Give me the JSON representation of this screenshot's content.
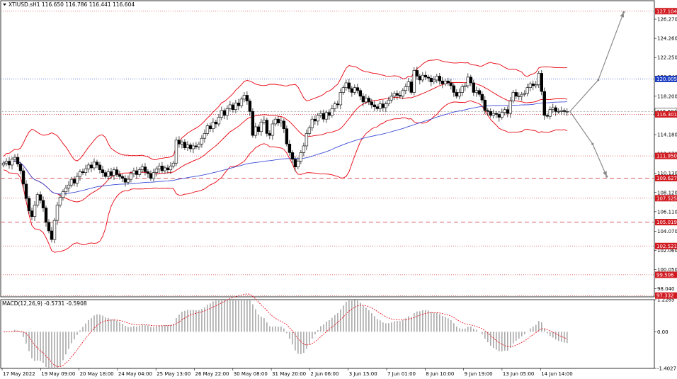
{
  "window": {
    "symbol_header": "XTIUSD.sH1  116.650 116.786 116.441 116.604",
    "indicator_header": "MACD(12,26,9) -0.5731 -0.5908"
  },
  "colors": {
    "bollinger": "#e8000c",
    "moving_average": "#3a4cd8",
    "candles": "#000000",
    "macd_histogram": "#a9a9a9",
    "macd_signal": "#e8000c",
    "level_line": "#d0464a",
    "price_label_bg": "#d11920",
    "blue_label_bg": "#1f3fc4",
    "forecast_arrow": "#8a8a8a"
  },
  "chart_data": [
    {
      "type": "candlestick",
      "title": "",
      "ylim": [
        97.2,
        128.2
      ],
      "y_ticks": [
        "126.270",
        "124.260",
        "122.250",
        "120.240",
        "118.200",
        "116.190",
        "114.180",
        "112.170",
        "110.130",
        "108.120",
        "106.110",
        "104.070",
        "102.060",
        "100.050",
        "98.040"
      ],
      "x_ticks": [
        "17 May 2022",
        "19 May 09:00",
        "20 May 18:00",
        "24 May 04:00",
        "25 May 13:00",
        "26 May 22:00",
        "30 May 08:00",
        "31 May 20:00",
        "2 Jun 06:00",
        "3 Jun 15:00",
        "7 Jun 01:00",
        "8 Jun 10:00",
        "9 Jun 19:00",
        "13 Jun 05:00",
        "14 Jun 14:00"
      ],
      "bar_count": 200,
      "close": [
        111.2,
        111.4,
        111.0,
        111.6,
        111.8,
        111.1,
        110.4,
        109.0,
        107.5,
        106.2,
        105.6,
        106.8,
        107.9,
        107.3,
        106.5,
        105.0,
        104.1,
        103.2,
        105.2,
        106.8,
        107.6,
        108.2,
        108.6,
        108.9,
        109.5,
        109.1,
        109.8,
        110.3,
        110.2,
        110.6,
        111.0,
        110.7,
        111.3,
        111.0,
        110.5,
        110.2,
        109.8,
        110.3,
        109.9,
        110.5,
        110.0,
        109.8,
        109.6,
        109.2,
        109.5,
        110.1,
        110.4,
        110.0,
        110.5,
        110.8,
        110.3,
        110.1,
        109.6,
        110.2,
        110.6,
        110.9,
        110.4,
        110.7,
        110.5,
        110.9,
        111.2,
        113.6,
        113.2,
        113.4,
        112.8,
        113.1,
        112.7,
        113.0,
        112.9,
        113.2,
        113.8,
        114.3,
        115.1,
        114.8,
        115.5,
        115.3,
        116.0,
        116.7,
        116.2,
        116.9,
        117.3,
        116.8,
        117.5,
        117.2,
        117.9,
        118.3,
        117.7,
        116.6,
        114.1,
        115.0,
        114.5,
        115.5,
        115.7,
        114.3,
        114.1,
        115.3,
        115.8,
        115.4,
        115.6,
        114.8,
        113.2,
        112.3,
        111.6,
        110.8,
        111.4,
        112.3,
        113.0,
        114.3,
        114.9,
        115.8,
        115.6,
        116.2,
        116.4,
        115.8,
        116.5,
        116.2,
        116.9,
        117.4,
        117.3,
        118.6,
        119.1,
        119.6,
        119.0,
        118.6,
        119.1,
        118.8,
        118.2,
        117.6,
        118.0,
        117.6,
        117.3,
        117.1,
        116.9,
        117.4,
        117.0,
        117.4,
        117.8,
        118.2,
        118.5,
        118.3,
        118.2,
        118.8,
        119.2,
        119.7,
        118.6,
        120.9,
        120.3,
        119.9,
        120.4,
        120.2,
        120.1,
        119.7,
        119.9,
        120.3,
        119.8,
        119.5,
        119.8,
        119.6,
        119.3,
        118.6,
        118.2,
        118.6,
        119.2,
        119.3,
        120.2,
        119.6,
        118.6,
        118.8,
        118.4,
        117.8,
        116.7,
        116.6,
        116.2,
        116.4,
        116.3,
        116.0,
        116.5,
        116.8,
        116.4,
        117.7,
        118.6,
        118.2,
        118.2,
        118.4,
        118.5,
        119.1,
        119.5,
        119.3,
        119.4,
        120.6,
        118.7,
        116.2,
        116.1,
        116.8,
        117.0,
        116.6,
        116.6,
        116.7,
        116.6,
        116.6
      ],
      "ma_series": {
        "period": 100
      },
      "bollinger_series": {
        "period": 20,
        "stddev": 2
      },
      "horizontal_levels": [
        {
          "price": 127.104,
          "label": "127.104",
          "style": "dotted"
        },
        {
          "price": 120.005,
          "label": "120.005",
          "style": "dotted-blue"
        },
        {
          "price": 116.604,
          "label": "116.604",
          "style": "current"
        },
        {
          "price": 116.301,
          "label": "116.301",
          "style": "dotted"
        },
        {
          "price": 111.95,
          "label": "111.950",
          "style": "dotted"
        },
        {
          "price": 109.627,
          "label": "109.627",
          "style": "dashed"
        },
        {
          "price": 107.525,
          "label": "107.525",
          "style": "dotted"
        },
        {
          "price": 105.019,
          "label": "105.019",
          "style": "dashed"
        },
        {
          "price": 102.521,
          "label": "102.521",
          "style": "dotted"
        },
        {
          "price": 99.506,
          "label": "99.506",
          "style": "dotted"
        },
        {
          "price": 97.332,
          "label": "97.332",
          "style": "dotted"
        }
      ],
      "forecast_paths": [
        {
          "direction": "up",
          "points": [
            [
              200,
              116.6
            ],
            [
              210,
              119.9
            ],
            [
              219,
              127.0
            ]
          ]
        },
        {
          "direction": "down",
          "points": [
            [
              200,
              116.6
            ],
            [
              208,
              113.2
            ],
            [
              213,
              109.8
            ]
          ]
        }
      ],
      "grid": false,
      "legend": "none"
    },
    {
      "type": "bar",
      "title": "",
      "ylim": [
        -1.4027,
        1.2285
      ],
      "y_ticks": [
        "1.2285",
        "0.00",
        "-1.4027"
      ],
      "macd_params": [
        12,
        26,
        9
      ],
      "histogram": "computed-from-close",
      "signal_line": "computed-from-histogram"
    }
  ]
}
